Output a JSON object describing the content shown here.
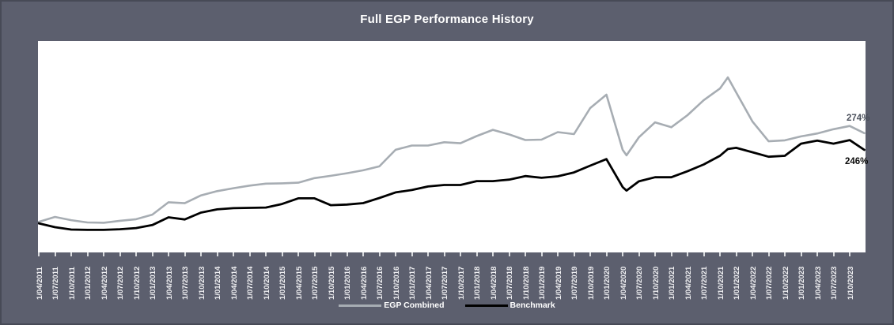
{
  "window": {
    "background_color": "#5c5f6e",
    "border_color": "#474a56",
    "plot_background": "#ffffff"
  },
  "chart_data": {
    "type": "line",
    "title": "Full EGP Performance History",
    "xlabel": "",
    "ylabel": "",
    "y_axis_visible": false,
    "grid": "off",
    "legend_position": "bottom-center",
    "units": "percent cumulative return",
    "x_tick_labels": [
      "1/04/2011",
      "1/07/2011",
      "1/10/2011",
      "1/01/2012",
      "1/04/2012",
      "1/07/2012",
      "1/10/2012",
      "1/01/2013",
      "1/04/2013",
      "1/07/2013",
      "1/10/2013",
      "1/01/2014",
      "1/04/2014",
      "1/07/2014",
      "1/10/2014",
      "1/01/2015",
      "1/04/2015",
      "1/07/2015",
      "1/10/2015",
      "1/01/2016",
      "1/04/2016",
      "1/07/2016",
      "1/10/2016",
      "1/01/2017",
      "1/04/2017",
      "1/07/2017",
      "1/10/2017",
      "1/01/2018",
      "1/04/2018",
      "1/07/2018",
      "1/10/2018",
      "1/01/2019",
      "1/04/2019",
      "1/07/2019",
      "1/10/2019",
      "1/01/2020",
      "1/04/2020",
      "1/07/2020",
      "1/10/2020",
      "1/01/2021",
      "1/04/2021",
      "1/07/2021",
      "1/10/2021",
      "1/01/2022",
      "1/04/2022",
      "1/07/2022",
      "1/10/2022",
      "1/01/2023",
      "1/04/2023",
      "1/07/2023",
      "1/10/2023"
    ],
    "legend": [
      {
        "name": "EGP Combined",
        "color": "#a7adb3"
      },
      {
        "name": "Benchmark",
        "color": "#000000"
      }
    ],
    "end_labels": [
      {
        "series": "EGP Combined",
        "text": "274%"
      },
      {
        "series": "Benchmark",
        "text": "246%"
      }
    ],
    "series": [
      {
        "name": "EGP Combined",
        "color": "#a7adb3",
        "stroke_width": 2.6,
        "points": [
          [
            0,
            2
          ],
          [
            1,
            17
          ],
          [
            2,
            7
          ],
          [
            3,
            0
          ],
          [
            4,
            -1
          ],
          [
            5,
            5
          ],
          [
            6,
            10
          ],
          [
            7,
            24
          ],
          [
            8,
            62
          ],
          [
            9,
            59
          ],
          [
            10,
            83
          ],
          [
            11,
            96
          ],
          [
            12,
            105
          ],
          [
            13,
            113
          ],
          [
            14,
            119
          ],
          [
            15,
            120
          ],
          [
            16,
            122
          ],
          [
            17,
            136
          ],
          [
            18,
            143
          ],
          [
            19,
            151
          ],
          [
            20,
            160
          ],
          [
            21,
            172
          ],
          [
            22,
            223
          ],
          [
            23,
            236
          ],
          [
            24,
            236
          ],
          [
            25,
            246
          ],
          [
            26,
            243
          ],
          [
            27,
            265
          ],
          [
            28,
            284
          ],
          [
            29,
            270
          ],
          [
            30,
            253
          ],
          [
            31,
            254
          ],
          [
            32,
            277
          ],
          [
            33,
            271
          ],
          [
            34,
            351
          ],
          [
            35,
            392
          ],
          [
            36,
            223
          ],
          [
            36.24,
            206
          ],
          [
            37,
            261
          ],
          [
            38,
            307
          ],
          [
            39,
            292
          ],
          [
            40,
            329
          ],
          [
            41,
            375
          ],
          [
            42,
            411
          ],
          [
            42.49,
            445
          ],
          [
            43,
            399
          ],
          [
            44,
            310
          ],
          [
            45,
            249
          ],
          [
            46,
            252
          ],
          [
            47,
            264
          ],
          [
            48,
            273
          ],
          [
            49,
            286
          ],
          [
            50,
            296
          ],
          [
            50.9,
            274
          ]
        ]
      },
      {
        "name": "Benchmark",
        "color": "#000000",
        "stroke_width": 2.8,
        "points": [
          [
            0,
            -1
          ],
          [
            1,
            -14
          ],
          [
            2,
            -22
          ],
          [
            3,
            -23
          ],
          [
            4,
            -23
          ],
          [
            5,
            -21
          ],
          [
            6,
            -17
          ],
          [
            7,
            -7
          ],
          [
            8,
            19
          ],
          [
            9,
            12
          ],
          [
            10,
            35
          ],
          [
            11,
            46
          ],
          [
            12,
            50
          ],
          [
            13,
            51
          ],
          [
            14,
            52
          ],
          [
            15,
            64
          ],
          [
            16,
            83
          ],
          [
            17,
            83
          ],
          [
            18,
            60
          ],
          [
            19,
            62
          ],
          [
            20,
            67
          ],
          [
            21,
            84
          ],
          [
            22,
            103
          ],
          [
            23,
            111
          ],
          [
            24,
            123
          ],
          [
            25,
            128
          ],
          [
            26,
            128
          ],
          [
            27,
            141
          ],
          [
            28,
            141
          ],
          [
            29,
            146
          ],
          [
            30,
            158
          ],
          [
            31,
            152
          ],
          [
            32,
            157
          ],
          [
            33,
            170
          ],
          [
            34,
            193
          ],
          [
            35,
            215
          ],
          [
            36,
            121
          ],
          [
            36.24,
            109
          ],
          [
            37,
            140
          ],
          [
            38,
            154
          ],
          [
            39,
            154
          ],
          [
            40,
            174
          ],
          [
            41,
            197
          ],
          [
            42,
            226
          ],
          [
            42.49,
            249
          ],
          [
            43,
            253
          ],
          [
            44,
            238
          ],
          [
            45,
            223
          ],
          [
            46,
            226
          ],
          [
            47,
            267
          ],
          [
            48,
            277
          ],
          [
            49,
            267
          ],
          [
            50,
            279
          ],
          [
            50.9,
            246
          ]
        ]
      }
    ]
  }
}
